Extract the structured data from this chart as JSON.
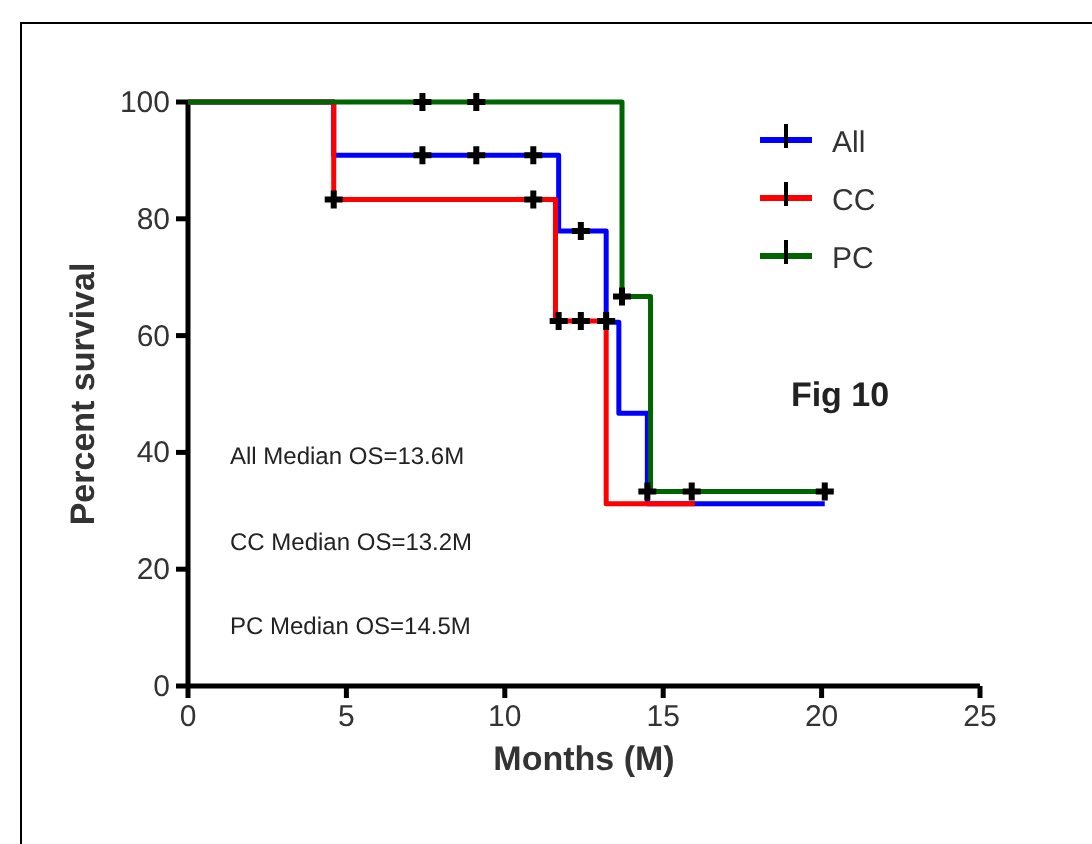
{
  "chart_data": {
    "type": "step",
    "xlabel": "Months (M)",
    "ylabel": "Percent survival",
    "xlim": [
      0,
      25
    ],
    "xticks": [
      0,
      5,
      10,
      15,
      20,
      25
    ],
    "ylim": [
      0,
      100
    ],
    "yticks": [
      0,
      20,
      40,
      60,
      80,
      100
    ],
    "grid": false,
    "legend": "top right",
    "line_style": "solid",
    "series": [
      {
        "name": "All",
        "color": "#0000ff",
        "x": [
          0,
          4.6,
          11.7,
          13.2,
          13.6,
          14.5,
          20.1
        ],
        "values": [
          100,
          90.9,
          77.9,
          62.3,
          46.7,
          31.2,
          31.2
        ]
      },
      {
        "name": "CC",
        "color": "#ff0000",
        "x": [
          0,
          4.6,
          11.6,
          13.2,
          16.0
        ],
        "values": [
          100,
          83.3,
          62.5,
          31.2,
          31.2
        ]
      },
      {
        "name": "PC",
        "color": "#006400",
        "x": [
          0,
          13.7,
          14.6,
          20.1
        ],
        "values": [
          100,
          66.7,
          33.3,
          33.3
        ]
      },
      {
        "type": "scatter",
        "color": "#000000",
        "marker": "cross",
        "x": [
          7.4,
          9.1,
          7.4,
          9.1,
          10.9,
          4.6,
          10.9,
          12.4,
          11.7,
          12.4,
          13.2,
          13.7,
          14.5,
          15.9,
          20.1
        ],
        "values": [
          100,
          100,
          90.9,
          90.9,
          90.9,
          83.3,
          83.3,
          77.9,
          62.5,
          62.5,
          62.5,
          66.7,
          33.3,
          33.3,
          33.3
        ]
      }
    ],
    "annotations": [
      "Fig 10",
      "All Median OS=13.6M",
      "CC Median OS=13.2M",
      "PC Median OS=14.5M"
    ]
  }
}
